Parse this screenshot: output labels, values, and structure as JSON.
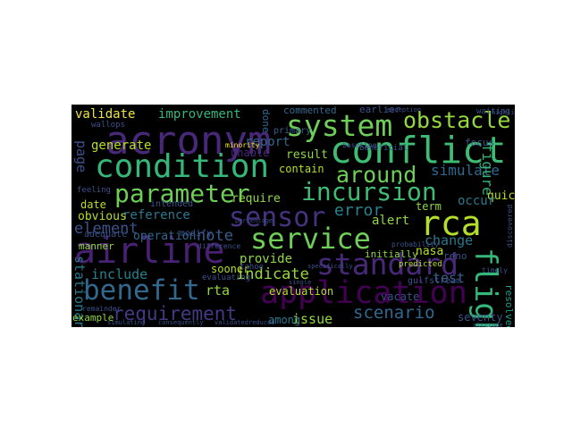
{
  "wordcloud": {
    "background": "#000000",
    "colormap": "viridis",
    "words": [
      {
        "text": "validate",
        "color": "#f0e442"
      },
      {
        "text": "improvement",
        "color": "#35b779"
      },
      {
        "text": "acronym",
        "color": "#482878"
      },
      {
        "text": "system",
        "color": "#6ece58"
      },
      {
        "text": "obstacle",
        "color": "#95d840"
      },
      {
        "text": "conflict",
        "color": "#3fbc73"
      },
      {
        "text": "generate",
        "color": "#b8de29"
      },
      {
        "text": "report",
        "color": "#31688e"
      },
      {
        "text": "condition",
        "color": "#35b779"
      },
      {
        "text": "result",
        "color": "#8fd744"
      },
      {
        "text": "contain",
        "color": "#b5de2b"
      },
      {
        "text": "around",
        "color": "#6ece58"
      },
      {
        "text": "simulate",
        "color": "#31688e"
      },
      {
        "text": "figure",
        "color": "#35b779"
      },
      {
        "text": "page",
        "color": "#3b528b"
      },
      {
        "text": "parameter",
        "color": "#6ece58"
      },
      {
        "text": "incursion",
        "color": "#3fbc73"
      },
      {
        "text": "sensor",
        "color": "#46327e"
      },
      {
        "text": "error",
        "color": "#26828e"
      },
      {
        "text": "date",
        "color": "#b5de2b"
      },
      {
        "text": "reference",
        "color": "#2a788e"
      },
      {
        "text": "alert",
        "color": "#90d743"
      },
      {
        "text": "rca",
        "color": "#b5de2b"
      },
      {
        "text": "element",
        "color": "#3b528b"
      },
      {
        "text": "note",
        "color": "#35608d"
      },
      {
        "text": "service",
        "color": "#6ece58"
      },
      {
        "text": "change",
        "color": "#2a788e"
      },
      {
        "text": "airline",
        "color": "#482173"
      },
      {
        "text": "provide",
        "color": "#8fd744"
      },
      {
        "text": "standard",
        "color": "#482878"
      },
      {
        "text": "flight",
        "color": "#35b779"
      },
      {
        "text": "nasa",
        "color": "#b5de2b"
      },
      {
        "text": "include",
        "color": "#26828e"
      },
      {
        "text": "indicate",
        "color": "#95d840"
      },
      {
        "text": "benefit",
        "color": "#31688e"
      },
      {
        "text": "rta",
        "color": "#8fd744"
      },
      {
        "text": "application",
        "color": "#440154"
      },
      {
        "text": "test",
        "color": "#35608d"
      },
      {
        "text": "stationary",
        "color": "#2a788e"
      },
      {
        "text": "requirement",
        "color": "#443983"
      },
      {
        "text": "issue",
        "color": "#8fd744"
      },
      {
        "text": "scenario",
        "color": "#31688e"
      },
      {
        "text": "resolved",
        "color": "#1f9e89"
      },
      {
        "text": "example",
        "color": "#90d743"
      },
      {
        "text": "quickly",
        "color": "#b5de2b"
      },
      {
        "text": "term",
        "color": "#8fd744"
      },
      {
        "text": "occur",
        "color": "#2a788e"
      },
      {
        "text": "commented",
        "color": "#31688e"
      },
      {
        "text": "earlier",
        "color": "#3b528b"
      },
      {
        "text": "done",
        "color": "#31688e"
      },
      {
        "text": "primary",
        "color": "#35608d"
      },
      {
        "text": "wallops",
        "color": "#3b528b"
      },
      {
        "text": "minority",
        "color": "#fde725"
      },
      {
        "text": "unable",
        "color": "#482878"
      },
      {
        "text": "require",
        "color": "#8fd744"
      },
      {
        "text": "feeling",
        "color": "#3b528b"
      },
      {
        "text": "obvious",
        "color": "#b5de2b"
      },
      {
        "text": "adequate",
        "color": "#3b528b"
      },
      {
        "text": "operation",
        "color": "#31688e"
      },
      {
        "text": "manner",
        "color": "#95d840"
      },
      {
        "text": "modify",
        "color": "#3b528b"
      },
      {
        "text": "sooner",
        "color": "#b5de2b"
      },
      {
        "text": "evaluation",
        "color": "#b5de2b"
      },
      {
        "text": "among",
        "color": "#2a788e"
      },
      {
        "text": "vacate",
        "color": "#3b528b"
      },
      {
        "text": "initially",
        "color": "#8fd744"
      },
      {
        "text": "predicted",
        "color": "#b5de2b"
      },
      {
        "text": "intended",
        "color": "#3b528b"
      },
      {
        "text": "tahoe",
        "color": "#3b528b"
      },
      {
        "text": "evaluating",
        "color": "#3b528b"
      },
      {
        "text": "seventy",
        "color": "#3b528b"
      },
      {
        "text": "gulfstream",
        "color": "#3b528b"
      },
      {
        "text": "focus",
        "color": "#3b528b"
      },
      {
        "text": "reno",
        "color": "#3b528b"
      },
      {
        "text": "remainder",
        "color": "#3b528b"
      },
      {
        "text": "simulating",
        "color": "#3b528b"
      },
      {
        "text": "validated",
        "color": "#3b528b"
      },
      {
        "text": "reduced",
        "color": "#3b528b"
      },
      {
        "text": "altitude",
        "color": "#3b528b"
      },
      {
        "text": "specifically",
        "color": "#3b528b"
      },
      {
        "text": "probability",
        "color": "#3b528b"
      },
      {
        "text": "discovered",
        "color": "#3b528b"
      },
      {
        "text": "beneficial",
        "color": "#3b528b"
      },
      {
        "text": "baseline",
        "color": "#3b528b"
      },
      {
        "text": "timely",
        "color": "#3b528b"
      },
      {
        "text": "exception",
        "color": "#3b528b"
      },
      {
        "text": "waiting",
        "color": "#3b528b"
      },
      {
        "text": "highlight",
        "color": "#3b528b"
      },
      {
        "text": "percentage",
        "color": "#3b528b"
      },
      {
        "text": "single",
        "color": "#3b528b"
      },
      {
        "text": "difference",
        "color": "#3b528b"
      },
      {
        "text": "consequently",
        "color": "#3b528b"
      }
    ]
  }
}
